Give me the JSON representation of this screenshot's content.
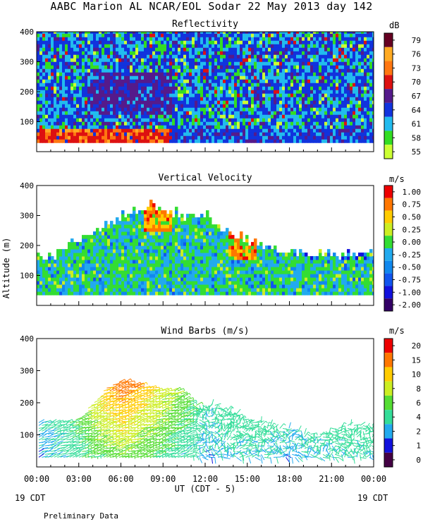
{
  "title": "AABC Marion AL NCAR/EOL Sodar  22 May 2013 day 142",
  "x_axis": {
    "ticks": [
      "00:00",
      "03:00",
      "06:00",
      "09:00",
      "12:00",
      "15:00",
      "18:00",
      "21:00",
      "00:00"
    ],
    "label": "UT  (CDT - 5)",
    "start_date": "19 CDT",
    "end_date": "19 CDT"
  },
  "footer_note": "Preliminary Data",
  "colors": {
    "palette_reflectivity": [
      "#ccff33",
      "#33dd22",
      "#22bbee",
      "#1133dd",
      "#551a8b",
      "#dd1111",
      "#ff7711",
      "#ffaa22",
      "#660022"
    ],
    "palette_velocity": [
      "#330000",
      "#330066",
      "#1111dd",
      "#1155ee",
      "#1188ee",
      "#22aaee",
      "#33dd33",
      "#ccee22",
      "#ffcc00",
      "#ff7700",
      "#ee0000"
    ],
    "palette_wind": [
      "#440044",
      "#1111dd",
      "#22aaee",
      "#33dd99",
      "#55dd33",
      "#ccee22",
      "#ffcc00",
      "#ff7700",
      "#ee0000"
    ]
  },
  "chart_data": [
    {
      "type": "heatmap",
      "title": "Reflectivity",
      "ylabel": "",
      "ylim": [
        0,
        400
      ],
      "yticks": [
        100,
        200,
        300,
        400
      ],
      "x_hours": [
        0,
        24
      ],
      "colorbar": {
        "unit": "dB",
        "labels": [
          "79",
          "76",
          "73",
          "70",
          "67",
          "64",
          "61",
          "58",
          "55"
        ]
      },
      "coverage": {
        "bottom_altitude": 30,
        "top_altitude": 400
      },
      "feature_notes": "red/orange near surface 00:00-09:00; purple core 200-250 m around 04:00-09:00; light-blue/green speckle with dark blue elsewhere"
    },
    {
      "type": "heatmap",
      "title": "Vertical Velocity",
      "ylabel": "Altitude (m)",
      "ylim": [
        0,
        400
      ],
      "yticks": [
        100,
        200,
        300,
        400
      ],
      "colorbar": {
        "unit": "m/s",
        "labels": [
          "1.00",
          "0.75",
          "0.50",
          "0.25",
          "0.00",
          "-0.25",
          "-0.50",
          "-0.75",
          "-1.00",
          "-2.00"
        ]
      },
      "coverage_top_altitude_by_hour": [
        [
          0,
          170
        ],
        [
          1,
          150
        ],
        [
          2,
          200
        ],
        [
          3,
          220
        ],
        [
          4,
          240
        ],
        [
          5,
          270
        ],
        [
          6,
          300
        ],
        [
          7,
          310
        ],
        [
          8,
          330
        ],
        [
          9,
          320
        ],
        [
          10,
          300
        ],
        [
          11,
          290
        ],
        [
          12,
          300
        ],
        [
          13,
          260
        ],
        [
          14,
          230
        ],
        [
          15,
          210
        ],
        [
          16,
          200
        ],
        [
          17,
          180
        ],
        [
          18,
          175
        ],
        [
          19,
          170
        ],
        [
          20,
          165
        ],
        [
          21,
          160
        ],
        [
          22,
          165
        ],
        [
          23,
          170
        ],
        [
          24,
          175
        ]
      ],
      "feature_notes": "mostly green/light blue; orange/red updrafts near 08:00-09:00 around 270-300 m and near 14:00-15:00 around 160-240 m"
    },
    {
      "type": "scatter",
      "title": "Wind Barbs (m/s)",
      "ylabel": "",
      "ylim": [
        0,
        400
      ],
      "yticks": [
        100,
        200,
        300,
        400
      ],
      "colorbar": {
        "unit": "m/s",
        "labels": [
          "20",
          "15",
          "10",
          "8",
          "6",
          "4",
          "2",
          "1",
          "0"
        ]
      },
      "coverage_top_altitude_by_hour": [
        [
          0,
          140
        ],
        [
          1,
          140
        ],
        [
          2,
          140
        ],
        [
          3,
          150
        ],
        [
          4,
          200
        ],
        [
          5,
          250
        ],
        [
          6,
          270
        ],
        [
          7,
          260
        ],
        [
          8,
          250
        ],
        [
          9,
          240
        ],
        [
          10,
          240
        ],
        [
          11,
          200
        ],
        [
          12,
          200
        ],
        [
          13,
          190
        ],
        [
          14,
          170
        ],
        [
          15,
          150
        ],
        [
          16,
          140
        ],
        [
          17,
          130
        ],
        [
          18,
          120
        ],
        [
          19,
          110
        ],
        [
          20,
          100
        ],
        [
          21,
          120
        ],
        [
          22,
          130
        ],
        [
          23,
          130
        ],
        [
          24,
          130
        ]
      ],
      "speed_m_s_by_hour": [
        [
          0,
          2
        ],
        [
          2,
          3
        ],
        [
          4,
          6
        ],
        [
          6,
          8
        ],
        [
          8,
          6
        ],
        [
          10,
          4
        ],
        [
          12,
          2
        ],
        [
          14,
          3
        ],
        [
          16,
          3
        ],
        [
          18,
          2
        ],
        [
          20,
          3
        ],
        [
          22,
          3
        ],
        [
          24,
          3
        ]
      ]
    }
  ]
}
